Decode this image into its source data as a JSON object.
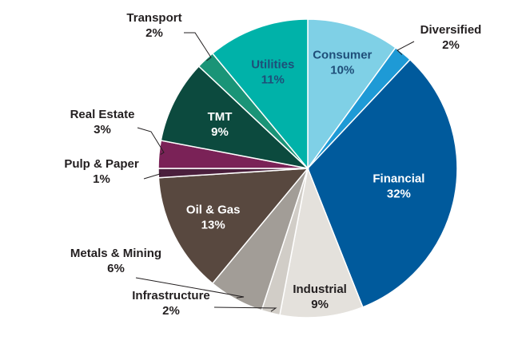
{
  "chart_data": {
    "type": "pie",
    "title": "",
    "slices": [
      {
        "label": "Consumer",
        "value": 10,
        "pct_label": "10%",
        "color": "#7fd0e6",
        "text_color": "#1f4e79",
        "label_pos": "inside"
      },
      {
        "label": "Diversified",
        "value": 2,
        "pct_label": "2%",
        "color": "#1e9ad6",
        "text_color": "#231f20",
        "label_pos": "outside"
      },
      {
        "label": "Financial",
        "value": 32,
        "pct_label": "32%",
        "color": "#005a9c",
        "text_color": "#ffffff",
        "label_pos": "inside"
      },
      {
        "label": "Industrial",
        "value": 9,
        "pct_label": "9%",
        "color": "#e4e1dc",
        "text_color": "#231f20",
        "label_pos": "inside"
      },
      {
        "label": "Infrastructure",
        "value": 2,
        "pct_label": "2%",
        "color": "#d1cdc7",
        "text_color": "#231f20",
        "label_pos": "outside"
      },
      {
        "label": "Metals & Mining",
        "value": 6,
        "pct_label": "6%",
        "color": "#a29d97",
        "text_color": "#231f20",
        "label_pos": "outside"
      },
      {
        "label": "Oil & Gas",
        "value": 13,
        "pct_label": "13%",
        "color": "#58483f",
        "text_color": "#ffffff",
        "label_pos": "inside"
      },
      {
        "label": "Pulp & Paper",
        "value": 1,
        "pct_label": "1%",
        "color": "#4a1f3c",
        "text_color": "#231f20",
        "label_pos": "outside"
      },
      {
        "label": "Real Estate",
        "value": 3,
        "pct_label": "3%",
        "color": "#7a2257",
        "text_color": "#231f20",
        "label_pos": "outside"
      },
      {
        "label": "TMT",
        "value": 9,
        "pct_label": "9%",
        "color": "#0c4a3e",
        "text_color": "#ffffff",
        "label_pos": "inside"
      },
      {
        "label": "Transport",
        "value": 2,
        "pct_label": "2%",
        "color": "#1a9477",
        "text_color": "#231f20",
        "label_pos": "outside"
      },
      {
        "label": "Utilities",
        "value": 11,
        "pct_label": "11%",
        "color": "#00b2a9",
        "text_color": "#1f4e79",
        "label_pos": "inside"
      }
    ]
  }
}
